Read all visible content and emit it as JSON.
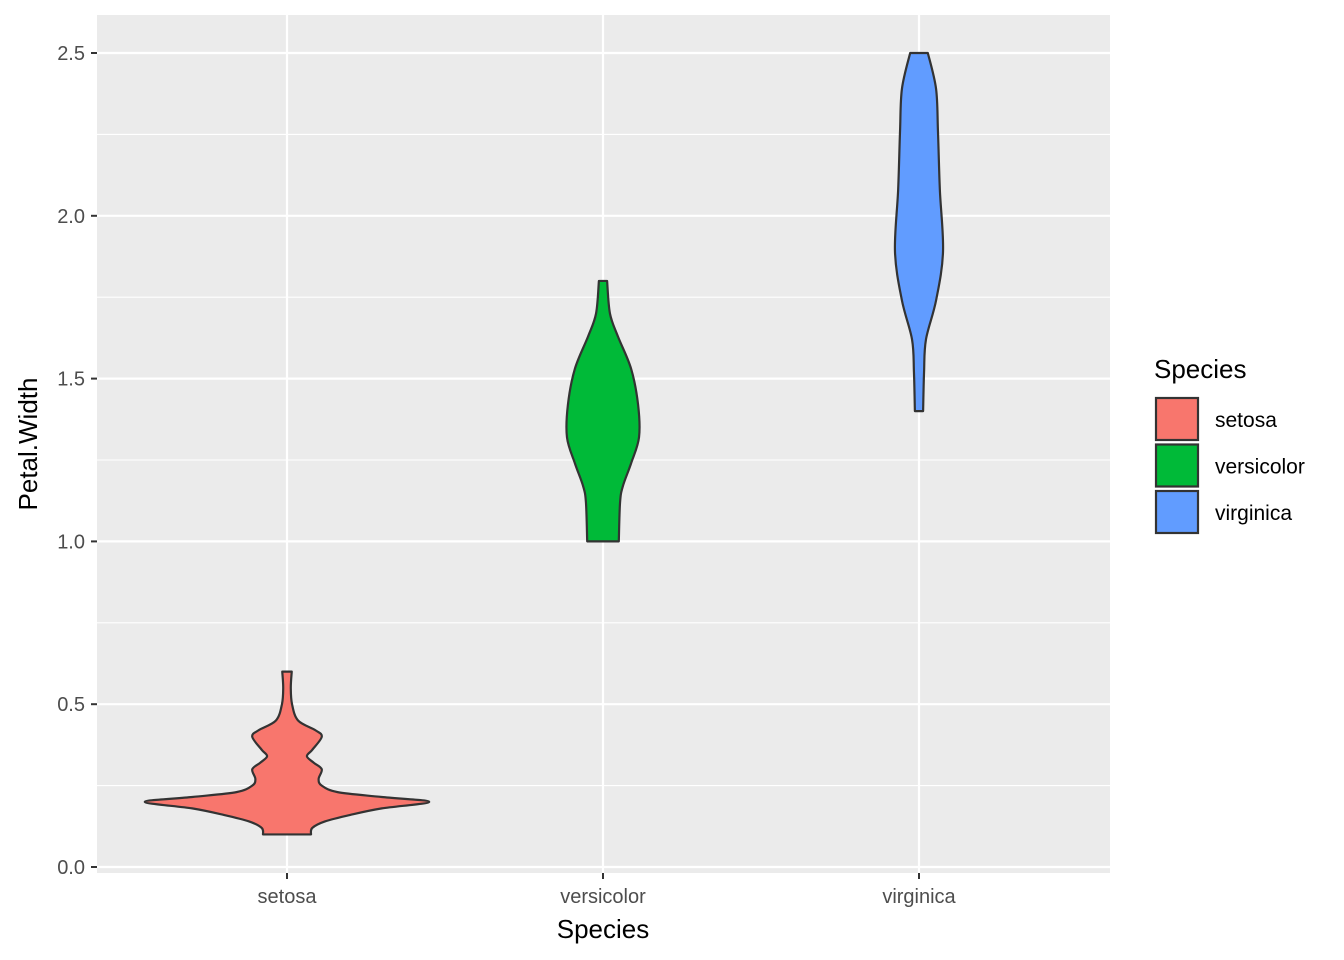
{
  "chart_data": {
    "type": "violin",
    "title": "",
    "xlabel": "Species",
    "ylabel": "Petal.Width",
    "categories": [
      "setosa",
      "versicolor",
      "virginica"
    ],
    "ylim": [
      -0.02,
      2.62
    ],
    "yticks": [
      0.0,
      0.5,
      1.0,
      1.5,
      2.0,
      2.5
    ],
    "ytick_labels": [
      "0.0",
      "0.5",
      "1.0",
      "1.5",
      "2.0",
      "2.5"
    ],
    "grid": true,
    "legend": {
      "title": "Species",
      "position": "right",
      "entries": [
        "setosa",
        "versicolor",
        "virginica"
      ]
    },
    "colors": {
      "setosa": "#F8766D",
      "versicolor": "#00BA38",
      "virginica": "#619CFF",
      "outline": "#333333",
      "panel": "#EBEBEB",
      "grid": "#FFFFFF"
    },
    "series": [
      {
        "name": "setosa",
        "min": 0.1,
        "max": 0.6,
        "density_halfwidth": [
          [
            0.1,
            0.076
          ],
          [
            0.12,
            0.08
          ],
          [
            0.14,
            0.12
          ],
          [
            0.16,
            0.2
          ],
          [
            0.18,
            0.3
          ],
          [
            0.2,
            0.45
          ],
          [
            0.215,
            0.3
          ],
          [
            0.23,
            0.16
          ],
          [
            0.25,
            0.11
          ],
          [
            0.27,
            0.1
          ],
          [
            0.3,
            0.11
          ],
          [
            0.32,
            0.085
          ],
          [
            0.34,
            0.063
          ],
          [
            0.36,
            0.08
          ],
          [
            0.4,
            0.11
          ],
          [
            0.42,
            0.09
          ],
          [
            0.45,
            0.035
          ],
          [
            0.5,
            0.016
          ],
          [
            0.55,
            0.012
          ],
          [
            0.6,
            0.015
          ]
        ]
      },
      {
        "name": "versicolor",
        "min": 1.0,
        "max": 1.8,
        "density_halfwidth": [
          [
            1.0,
            0.05
          ],
          [
            1.12,
            0.054
          ],
          [
            1.17,
            0.063
          ],
          [
            1.24,
            0.089
          ],
          [
            1.32,
            0.114
          ],
          [
            1.42,
            0.111
          ],
          [
            1.53,
            0.089
          ],
          [
            1.63,
            0.047
          ],
          [
            1.7,
            0.022
          ],
          [
            1.8,
            0.013
          ]
        ]
      },
      {
        "name": "virginica",
        "min": 1.4,
        "max": 2.5,
        "density_halfwidth": [
          [
            1.4,
            0.013
          ],
          [
            1.52,
            0.016
          ],
          [
            1.62,
            0.022
          ],
          [
            1.74,
            0.054
          ],
          [
            1.89,
            0.076
          ],
          [
            2.08,
            0.066
          ],
          [
            2.26,
            0.06
          ],
          [
            2.39,
            0.054
          ],
          [
            2.5,
            0.028
          ]
        ]
      }
    ]
  }
}
